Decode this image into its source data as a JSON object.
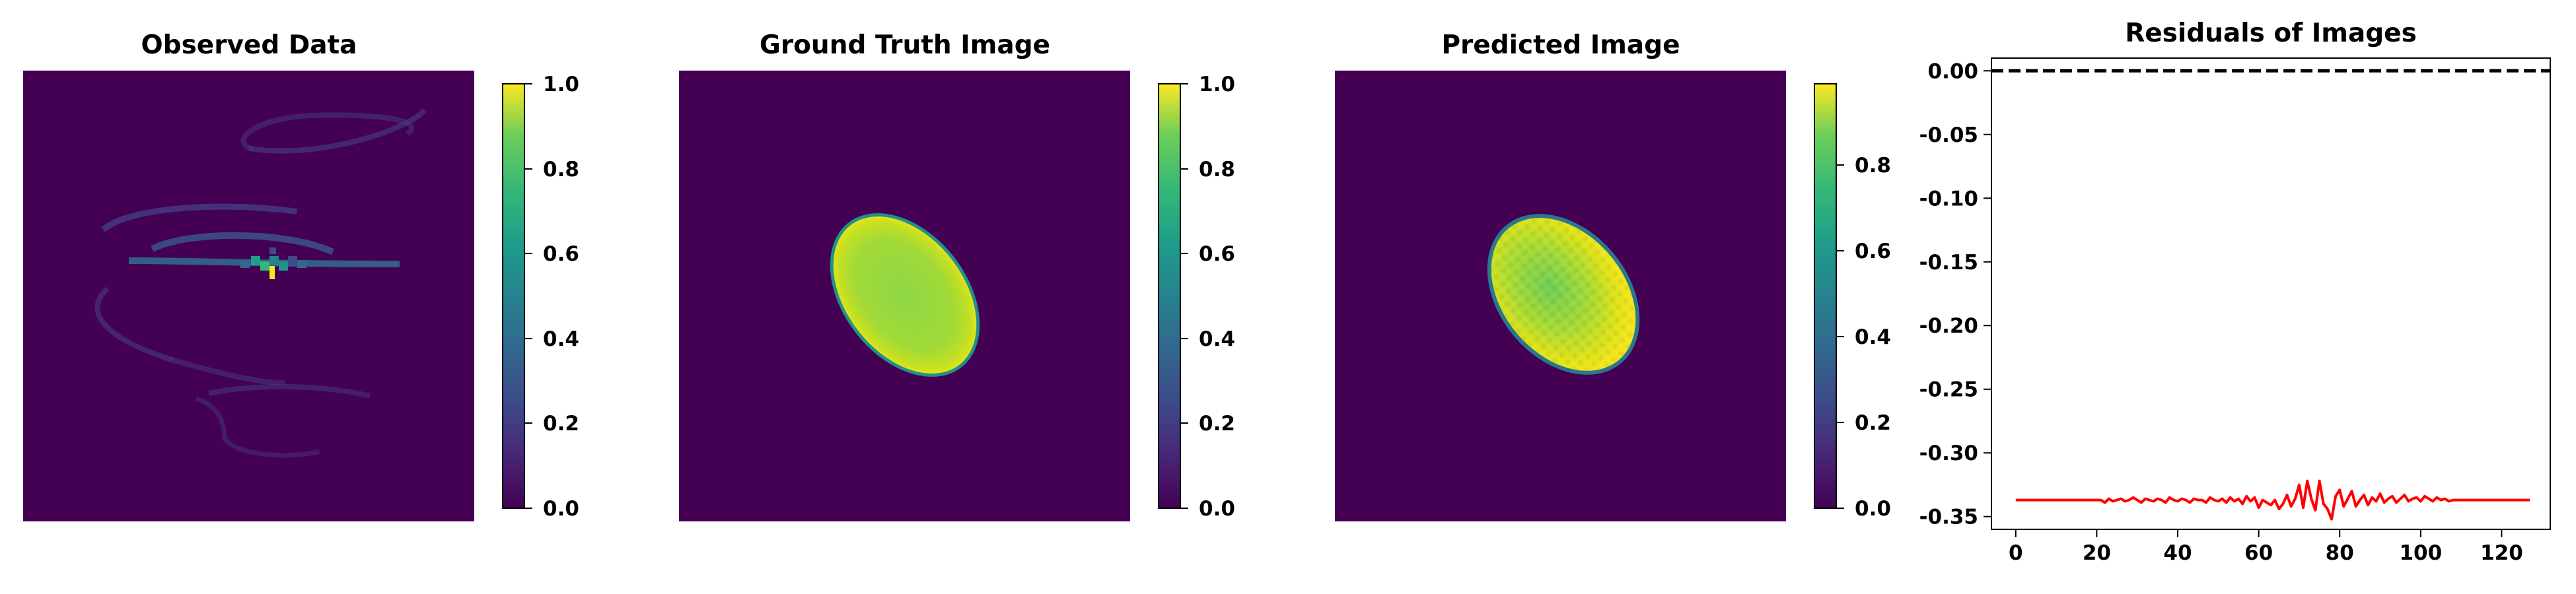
{
  "chart_data": [
    {
      "type": "heatmap",
      "title": "Observed Data",
      "description": "sparse spiral arc samples on dark background",
      "colormap": "viridis",
      "colorbar": {
        "vmin": 0.0,
        "vmax": 1.0,
        "ticks": [
          "0.0",
          "0.2",
          "0.4",
          "0.6",
          "0.8",
          "1.0"
        ]
      }
    },
    {
      "type": "heatmap",
      "title": "Ground Truth Image",
      "description": "tilted ellipse, bright rim, values ~0.8-1.0 inside",
      "colormap": "viridis",
      "colorbar": {
        "vmin": 0.0,
        "vmax": 1.0,
        "ticks": [
          "0.0",
          "0.2",
          "0.4",
          "0.6",
          "0.8",
          "1.0"
        ]
      }
    },
    {
      "type": "heatmap",
      "title": "Predicted Image",
      "description": "tilted ellipse reconstruction, slightly noisy",
      "colormap": "viridis",
      "colorbar": {
        "vmin": 0.0,
        "vmax": 0.99,
        "ticks": [
          "0.0",
          "0.2",
          "0.4",
          "0.6",
          "0.8"
        ]
      }
    },
    {
      "type": "line",
      "title": "Residuals of Images",
      "xlim": [
        -6,
        132
      ],
      "ylim": [
        -0.36,
        0.01
      ],
      "xticks": [
        "0",
        "20",
        "40",
        "60",
        "80",
        "100",
        "120"
      ],
      "yticks": [
        "0.00",
        "-0.05",
        "-0.10",
        "-0.15",
        "-0.20",
        "-0.25",
        "-0.30",
        "-0.35"
      ],
      "series": [
        {
          "style": "dashed",
          "color": "#000000",
          "x": [
            -6,
            132
          ],
          "y": [
            0.0,
            0.0
          ]
        },
        {
          "style": "solid",
          "color": "#ff0000",
          "x": [
            0,
            2,
            4,
            6,
            8,
            10,
            12,
            14,
            16,
            18,
            20,
            21,
            22,
            23,
            24,
            25,
            26,
            27,
            28,
            29,
            30,
            31,
            32,
            33,
            34,
            35,
            36,
            37,
            38,
            39,
            40,
            41,
            42,
            43,
            44,
            45,
            46,
            47,
            48,
            49,
            50,
            51,
            52,
            53,
            54,
            55,
            56,
            57,
            58,
            59,
            60,
            61,
            62,
            63,
            64,
            65,
            66,
            67,
            68,
            69,
            70,
            71,
            72,
            73,
            74,
            75,
            76,
            77,
            78,
            79,
            80,
            81,
            82,
            83,
            84,
            85,
            86,
            87,
            88,
            89,
            90,
            91,
            92,
            93,
            94,
            95,
            96,
            97,
            98,
            99,
            100,
            101,
            102,
            103,
            104,
            105,
            106,
            107,
            108,
            110,
            112,
            114,
            116,
            118,
            120,
            122,
            124,
            126,
            127
          ],
          "y": [
            -0.337,
            -0.337,
            -0.337,
            -0.337,
            -0.337,
            -0.337,
            -0.337,
            -0.337,
            -0.337,
            -0.337,
            -0.337,
            -0.337,
            -0.339,
            -0.336,
            -0.338,
            -0.337,
            -0.336,
            -0.338,
            -0.337,
            -0.335,
            -0.337,
            -0.339,
            -0.336,
            -0.337,
            -0.338,
            -0.336,
            -0.337,
            -0.339,
            -0.335,
            -0.337,
            -0.338,
            -0.336,
            -0.337,
            -0.339,
            -0.336,
            -0.337,
            -0.337,
            -0.339,
            -0.335,
            -0.337,
            -0.338,
            -0.336,
            -0.339,
            -0.335,
            -0.338,
            -0.336,
            -0.34,
            -0.334,
            -0.338,
            -0.335,
            -0.343,
            -0.337,
            -0.339,
            -0.341,
            -0.337,
            -0.344,
            -0.34,
            -0.333,
            -0.342,
            -0.336,
            -0.325,
            -0.343,
            -0.322,
            -0.336,
            -0.345,
            -0.322,
            -0.34,
            -0.344,
            -0.352,
            -0.334,
            -0.329,
            -0.342,
            -0.336,
            -0.33,
            -0.342,
            -0.337,
            -0.333,
            -0.341,
            -0.335,
            -0.338,
            -0.332,
            -0.339,
            -0.336,
            -0.334,
            -0.339,
            -0.336,
            -0.333,
            -0.338,
            -0.336,
            -0.335,
            -0.338,
            -0.334,
            -0.336,
            -0.338,
            -0.335,
            -0.337,
            -0.336,
            -0.338,
            -0.337,
            -0.337,
            -0.337,
            -0.337,
            -0.337,
            -0.337,
            -0.337,
            -0.337,
            -0.337,
            -0.337,
            -0.337
          ]
        }
      ]
    }
  ]
}
